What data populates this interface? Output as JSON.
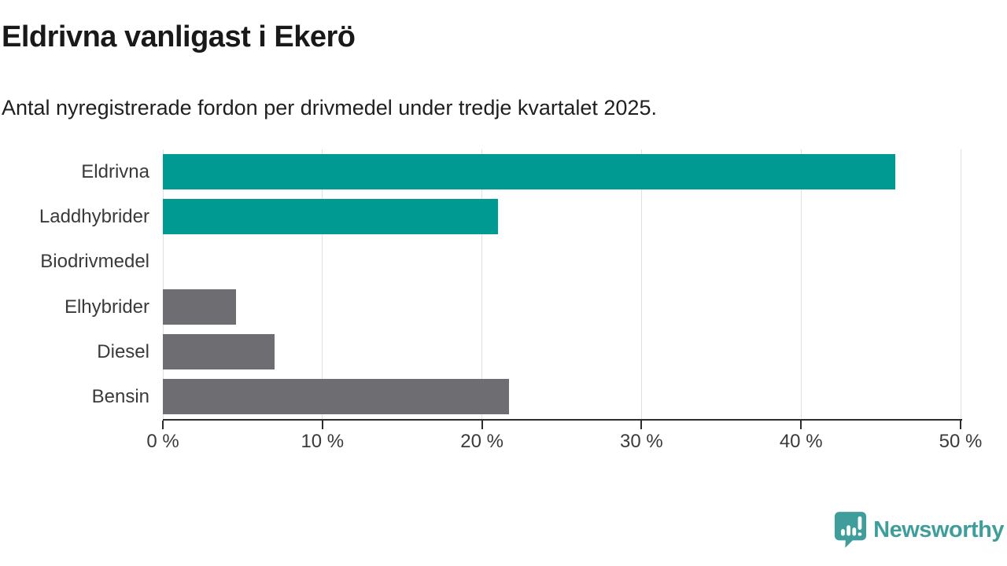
{
  "title": "Eldrivna vanligast i Ekerö",
  "subtitle": "Antal nyregistrerade fordon per drivmedel under tredje kvartalet 2025.",
  "chart_data": {
    "type": "bar",
    "orientation": "horizontal",
    "title": "Eldrivna vanligast i Ekerö",
    "subtitle": "Antal nyregistrerade fordon per drivmedel under tredje kvartalet 2025.",
    "categories": [
      "Eldrivna",
      "Laddhybrider",
      "Biodrivmedel",
      "Elhybrider",
      "Diesel",
      "Bensin"
    ],
    "values": [
      45.9,
      21.0,
      0,
      4.6,
      7.0,
      21.7
    ],
    "bar_colors": [
      "#009a92",
      "#009a92",
      "#009a92",
      "#6d6d72",
      "#6d6d72",
      "#6d6d72"
    ],
    "xlim": [
      0,
      50
    ],
    "xticks": [
      0,
      10,
      20,
      30,
      40,
      50
    ],
    "xtick_labels": [
      "0 %",
      "10 %",
      "20 %",
      "30 %",
      "40 %",
      "50 %"
    ],
    "grid": "vertical-light-gray",
    "legend": "none",
    "unit": "percent"
  },
  "colors": {
    "accent_teal": "#009a92",
    "neutral_gray": "#6d6d72",
    "axis": "#2d2d2d",
    "gridline": "#e0e0e0",
    "text": "#3a3a3a",
    "logo": "#3f9e9b"
  },
  "logo": {
    "text": "Newsworthy",
    "icon": "newsworthy-bar-chart-bubble-icon"
  }
}
